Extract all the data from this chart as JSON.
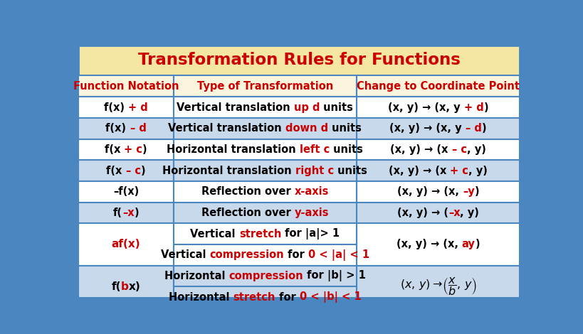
{
  "title": "Transformation Rules for Functions",
  "title_bg": "#F5E6A3",
  "title_color": "#CC0000",
  "header_bg": "#FAF5DC",
  "header_color": "#CC0000",
  "row_bg_light": "#FFFFFF",
  "row_bg_blue": "#C8D9EC",
  "border_color": "#4A86C0",
  "black": "#000000",
  "red": "#CC0000",
  "col_headers": [
    "Function Notation",
    "Type of Transformation",
    "Change to Coordinate Point"
  ],
  "rows": [
    {
      "col0": [
        [
          "f(x) ",
          "k"
        ],
        [
          "+ d",
          "r"
        ]
      ],
      "col1": [
        [
          "Vertical translation ",
          "k"
        ],
        [
          "up d",
          "r"
        ],
        [
          " units",
          "k"
        ]
      ],
      "col2": [
        [
          "(x, y) → (x, y ",
          "k"
        ],
        [
          "+ d",
          "r"
        ],
        [
          ")",
          "k"
        ]
      ],
      "bg": "white",
      "span": 1
    },
    {
      "col0": [
        [
          "f(x) ",
          "k"
        ],
        [
          "– d",
          "r"
        ]
      ],
      "col1": [
        [
          "Vertical translation ",
          "k"
        ],
        [
          "down d",
          "r"
        ],
        [
          " units",
          "k"
        ]
      ],
      "col2": [
        [
          "(x, y) → (x, y ",
          "k"
        ],
        [
          "– d",
          "r"
        ],
        [
          ")",
          "k"
        ]
      ],
      "bg": "blue",
      "span": 1
    },
    {
      "col0": [
        [
          "f(x ",
          "k"
        ],
        [
          "+ c",
          "r"
        ],
        [
          ")",
          "k"
        ]
      ],
      "col1": [
        [
          "Horizontal translation ",
          "k"
        ],
        [
          "left c",
          "r"
        ],
        [
          " units",
          "k"
        ]
      ],
      "col2": [
        [
          "(x, y) → (x ",
          "k"
        ],
        [
          "– c",
          "r"
        ],
        [
          ", y)",
          "k"
        ]
      ],
      "bg": "white",
      "span": 1
    },
    {
      "col0": [
        [
          "f(x ",
          "k"
        ],
        [
          "– c",
          "r"
        ],
        [
          ")",
          "k"
        ]
      ],
      "col1": [
        [
          "Horizontal translation ",
          "k"
        ],
        [
          "right c",
          "r"
        ],
        [
          " units",
          "k"
        ]
      ],
      "col2": [
        [
          "(x, y) → (x ",
          "k"
        ],
        [
          "+ c",
          "r"
        ],
        [
          ", y)",
          "k"
        ]
      ],
      "bg": "blue",
      "span": 1
    },
    {
      "col0": [
        [
          "–f(x)",
          "k"
        ]
      ],
      "col1": [
        [
          "Reflection over ",
          "k"
        ],
        [
          "x-axis",
          "r"
        ]
      ],
      "col2": [
        [
          "(x, y) → (x, ",
          "k"
        ],
        [
          "–y",
          "r"
        ],
        [
          ")",
          "k"
        ]
      ],
      "bg": "white",
      "span": 1
    },
    {
      "col0": [
        [
          "f(",
          "k"
        ],
        [
          "–x",
          "r"
        ],
        [
          ")",
          "k"
        ]
      ],
      "col1": [
        [
          "Reflection over ",
          "k"
        ],
        [
          "y-axis",
          "r"
        ]
      ],
      "col2": [
        [
          "(x, y) → (",
          "k"
        ],
        [
          "–x",
          "r"
        ],
        [
          ", y)",
          "k"
        ]
      ],
      "bg": "blue",
      "span": 1
    },
    {
      "col0": [
        [
          "af(x)",
          "r"
        ]
      ],
      "col1_top": [
        [
          "Vertical ",
          "k"
        ],
        [
          "stretch",
          "r"
        ],
        [
          " for |a|> 1",
          "k"
        ]
      ],
      "col1_bot": [
        [
          "Vertical ",
          "k"
        ],
        [
          "compression",
          "r"
        ],
        [
          " for ",
          "k"
        ],
        [
          "0 < |a| < 1",
          "r"
        ]
      ],
      "col2": [
        [
          "(x, y) → (x, ",
          "k"
        ],
        [
          "ay",
          "r"
        ],
        [
          ")",
          "k"
        ]
      ],
      "bg": "white",
      "span": 2
    },
    {
      "col0": [
        [
          "f(",
          "k"
        ],
        [
          "b",
          "r"
        ],
        [
          "x)",
          "k"
        ]
      ],
      "col1_top": [
        [
          "Horizontal ",
          "k"
        ],
        [
          "compression",
          "r"
        ],
        [
          " for |b| > 1",
          "k"
        ]
      ],
      "col1_bot": [
        [
          "Horizontal ",
          "k"
        ],
        [
          "stretch",
          "r"
        ],
        [
          " for ",
          "k"
        ],
        [
          "0 < |b| < 1",
          "r"
        ]
      ],
      "col2_special": true,
      "bg": "blue",
      "span": 2
    }
  ]
}
